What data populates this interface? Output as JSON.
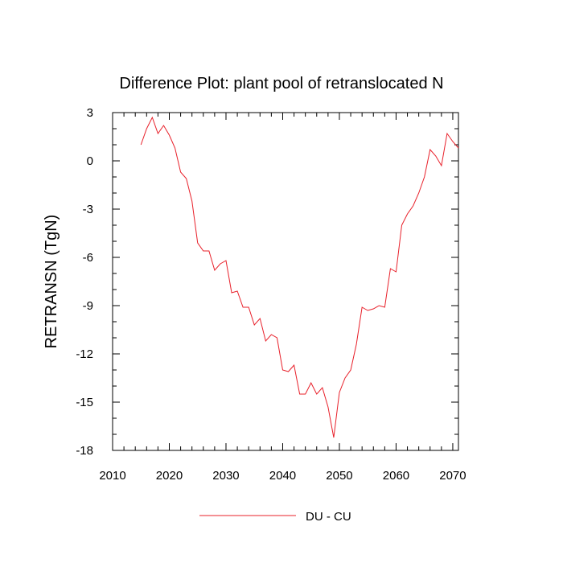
{
  "chart_data": {
    "type": "line",
    "title": "Difference Plot: plant pool of retranslocated N",
    "xlabel": "",
    "ylabel": "RETRANSN  (TgN)",
    "xlim": [
      2010,
      2071
    ],
    "ylim": [
      -18,
      3
    ],
    "xticks": [
      2010,
      2020,
      2030,
      2040,
      2050,
      2060,
      2070
    ],
    "yticks": [
      3,
      0,
      -3,
      -6,
      -9,
      -12,
      -15,
      -18
    ],
    "xtick_labels": [
      "2010",
      "2020",
      "2030",
      "2040",
      "2050",
      "2060",
      "2070"
    ],
    "ytick_labels": [
      "3",
      "0",
      "-3",
      "-6",
      "-9",
      "-12",
      "-15",
      "-18"
    ],
    "legend_position": "bottom-center",
    "series": [
      {
        "name": "DU - CU",
        "color": "#e8202a",
        "x": [
          2015,
          2016,
          2017,
          2018,
          2019,
          2020,
          2021,
          2022,
          2023,
          2024,
          2025,
          2026,
          2027,
          2028,
          2029,
          2030,
          2031,
          2032,
          2033,
          2034,
          2035,
          2036,
          2037,
          2038,
          2039,
          2040,
          2041,
          2042,
          2043,
          2044,
          2045,
          2046,
          2047,
          2048,
          2049,
          2050,
          2051,
          2052,
          2053,
          2054,
          2055,
          2056,
          2057,
          2058,
          2059,
          2060,
          2061,
          2062,
          2063,
          2064,
          2065,
          2066,
          2067,
          2068,
          2069,
          2070,
          2071
        ],
        "values": [
          1.0,
          2.0,
          2.7,
          1.7,
          2.2,
          1.6,
          0.8,
          -0.7,
          -1.1,
          -2.5,
          -5.1,
          -5.6,
          -5.6,
          -6.8,
          -6.4,
          -6.2,
          -8.2,
          -8.1,
          -9.1,
          -9.1,
          -10.2,
          -9.8,
          -11.2,
          -10.8,
          -11.0,
          -13.0,
          -13.1,
          -12.7,
          -14.5,
          -14.5,
          -13.8,
          -14.5,
          -14.1,
          -15.3,
          -17.2,
          -14.4,
          -13.5,
          -13.0,
          -11.4,
          -9.1,
          -9.3,
          -9.2,
          -9.0,
          -9.1,
          -6.7,
          -6.9,
          -4.0,
          -3.3,
          -2.8,
          -2.0,
          -1.0,
          0.7,
          0.3,
          -0.3,
          1.7,
          1.2,
          0.8
        ]
      }
    ]
  }
}
